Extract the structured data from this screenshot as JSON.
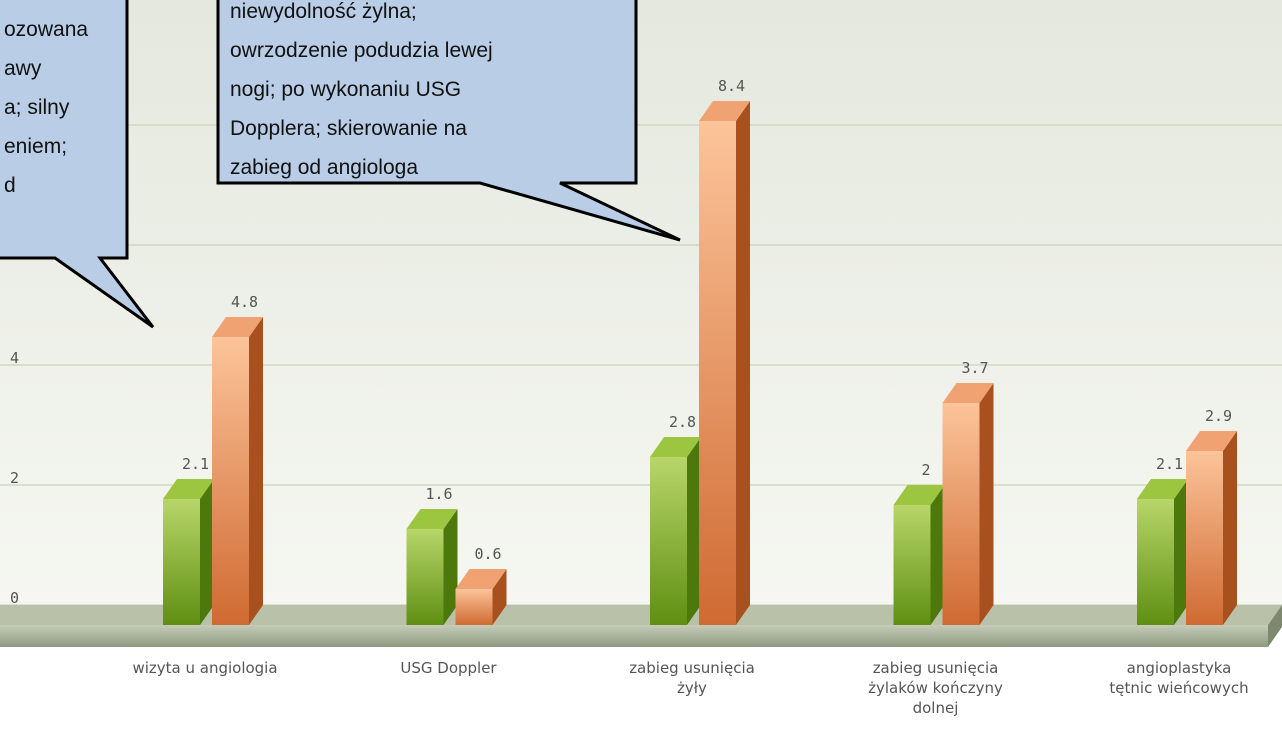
{
  "chart_data": {
    "type": "bar3d",
    "categories": [
      "wizyta u angiologia",
      "USG Doppler",
      "zabieg usunięcia\nżyły",
      "zabieg usunięcia\nżylaków kończyny\ndolnej",
      "angioplastyka\ntętnic wieńcowych"
    ],
    "series": [
      {
        "color": "#7aa52a",
        "values": [
          2.1,
          1.6,
          2.8,
          2,
          2.1
        ]
      },
      {
        "color": "#e07a40",
        "values": [
          4.8,
          0.6,
          8.4,
          3.7,
          2.9
        ]
      }
    ],
    "ylim": [
      0,
      10
    ],
    "yticks": [
      0,
      2,
      4,
      6,
      8
    ],
    "grid": true,
    "annotations": [
      {
        "lines": [
          "ozowana",
          "awy",
          "a; silny",
          "eniem;",
          "d"
        ]
      },
      {
        "lines": [
          "niewydolność żylna;",
          "owrzodzenie podudzia lewej",
          "nogi; po wykonaniu USG",
          "Dopplera; skierowanie na",
          "zabieg od angiologa"
        ]
      }
    ]
  }
}
